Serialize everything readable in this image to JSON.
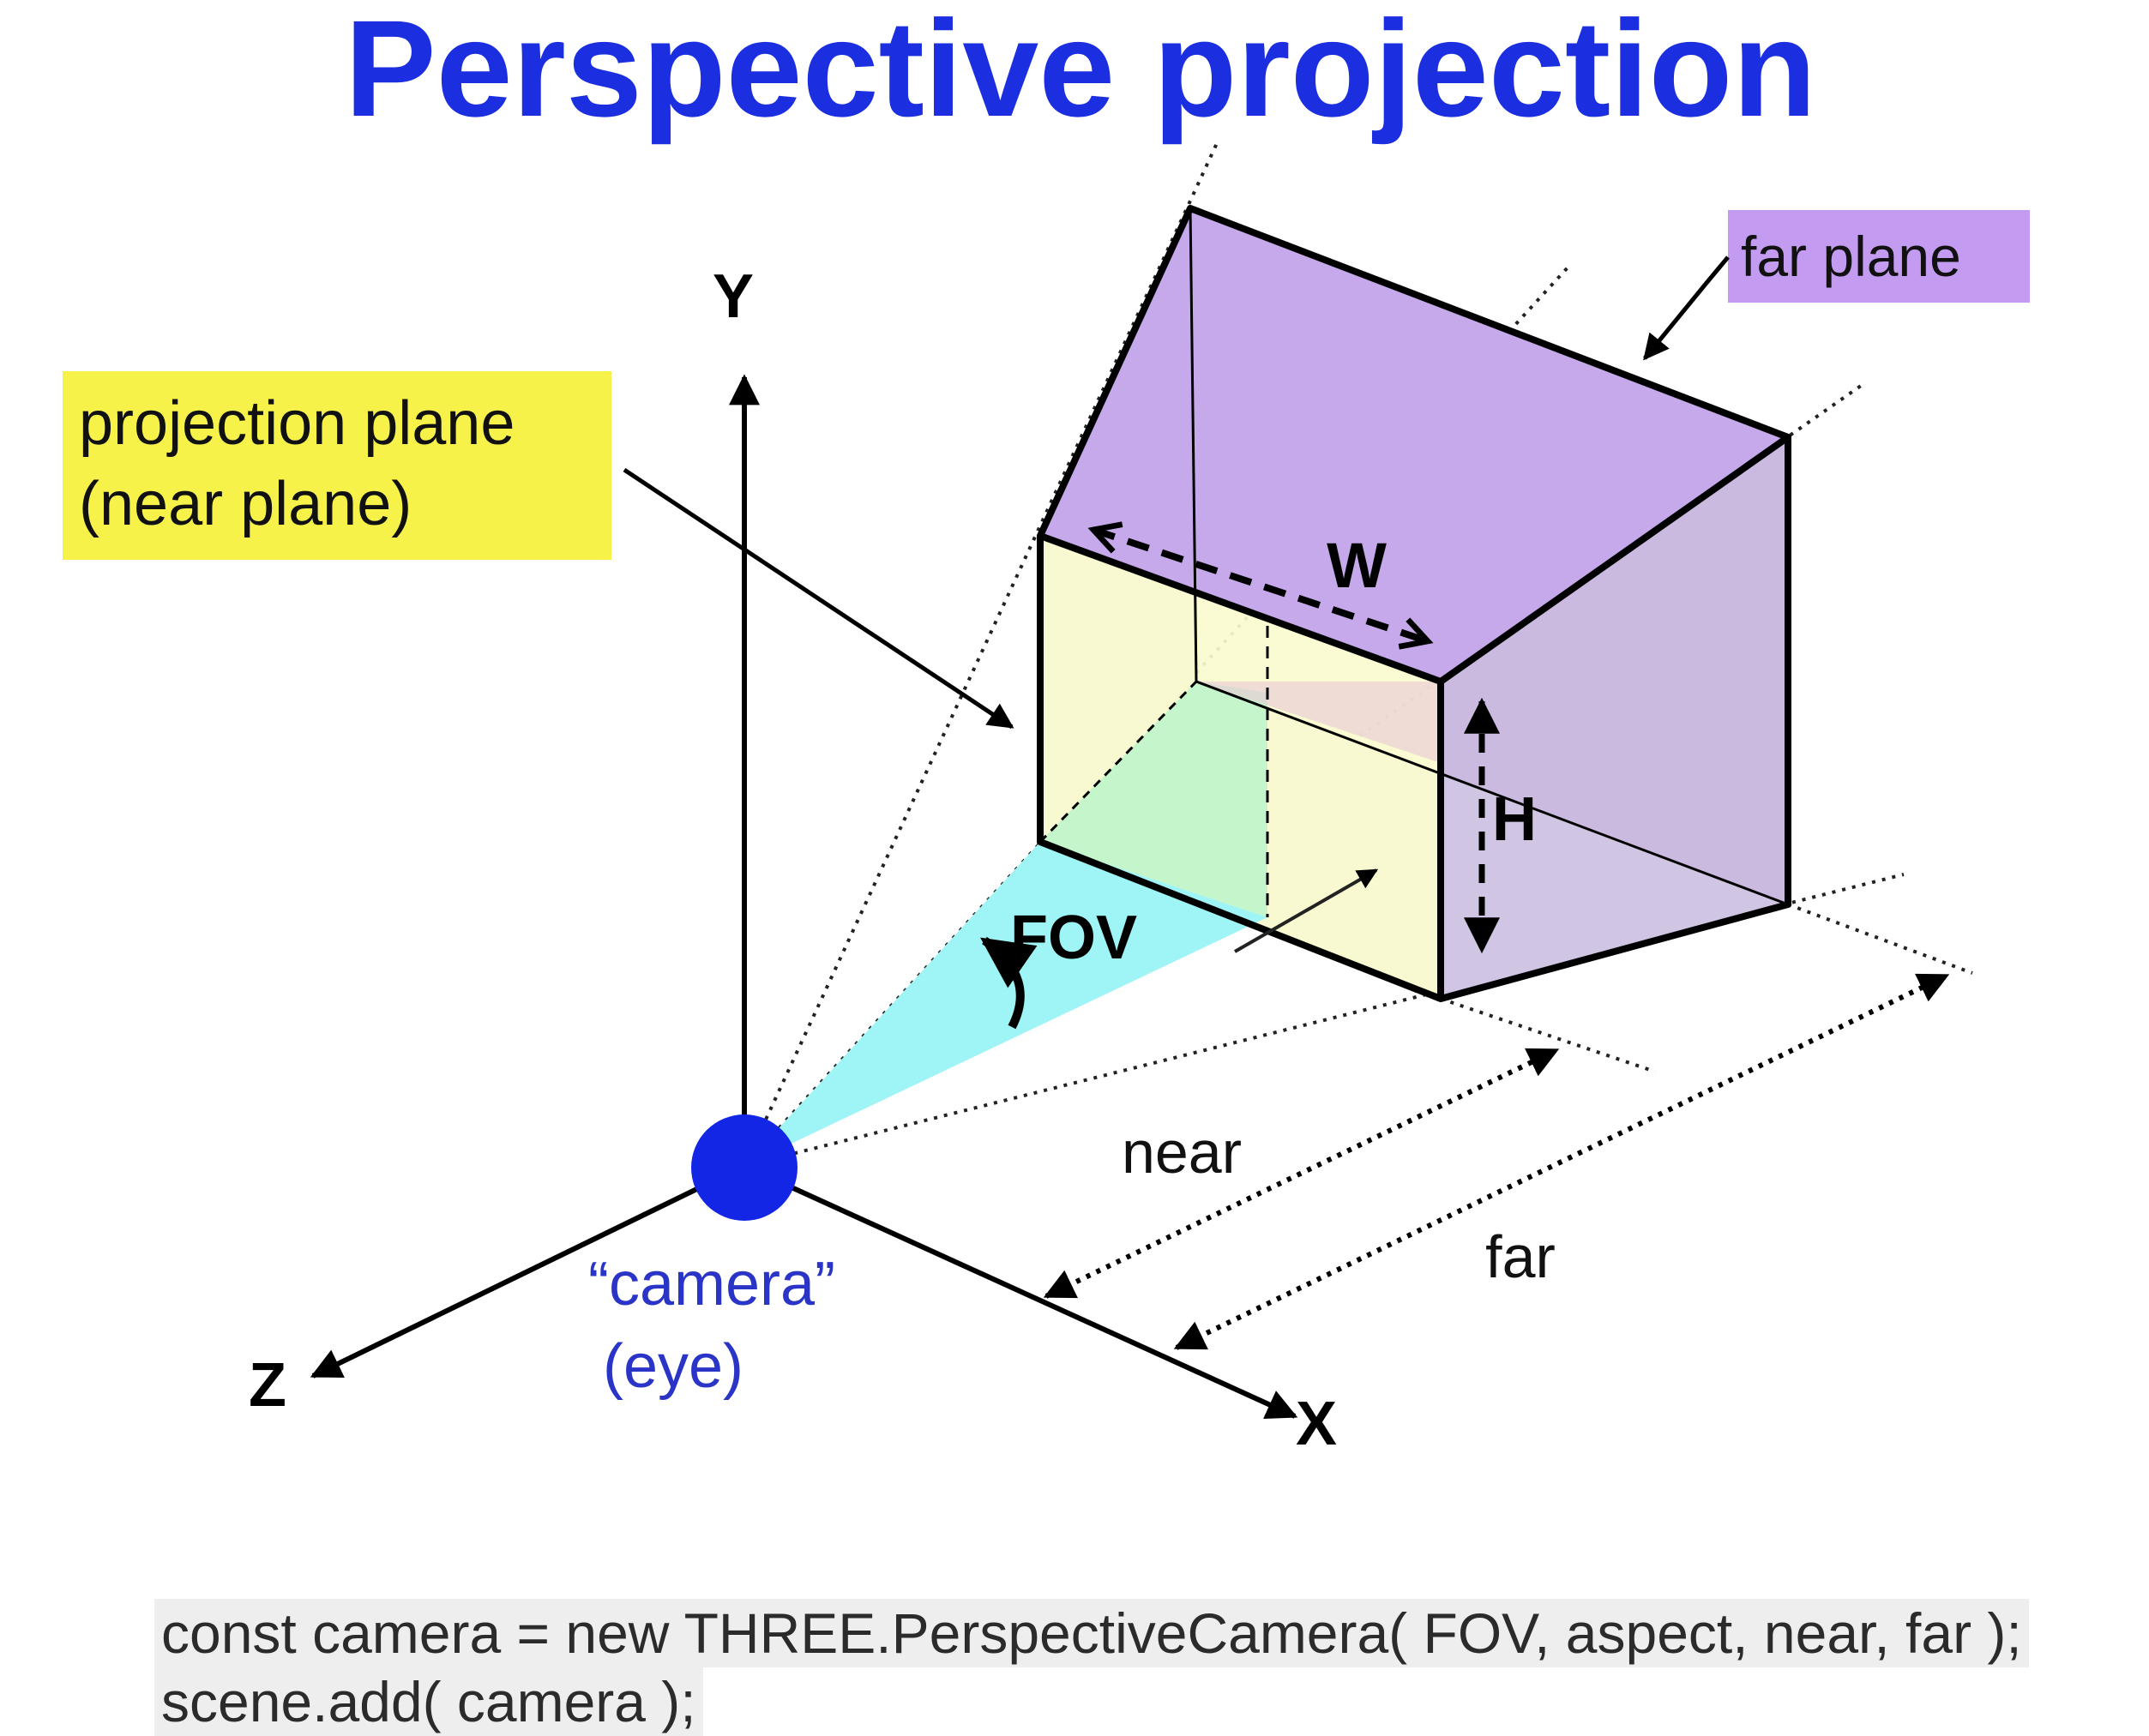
{
  "slide": {
    "title": "Perspective projection"
  },
  "diagram": {
    "labels": {
      "axis_y": "Y",
      "axis_x": "X",
      "axis_z": "Z",
      "projection_plane_line1": "projection plane",
      "projection_plane_line2": "(near plane)",
      "far_plane": "far plane",
      "width": "W",
      "height": "H",
      "fov": "FOV",
      "near": "near",
      "far": "far",
      "camera_line1": "“camera”",
      "camera_line2": "(eye)"
    },
    "colors": {
      "title": "#1c2fe0",
      "camera": "#1326e6",
      "camera_text": "#2a35c8",
      "near_plane_callout": "#f7f249",
      "far_plane_callout": "#c39bf0",
      "far_plane_fill": "#c6a9ea",
      "near_plane_fill": "#fbfbcf",
      "side_fill": "#e2e2e2",
      "fov_fill": "#9ff5f5",
      "inner_green": "#c4f5cb"
    }
  },
  "code": {
    "line1": "const camera = new THREE.PerspectiveCamera( FOV, aspect, near, far );",
    "line2": "scene.add( camera );"
  }
}
